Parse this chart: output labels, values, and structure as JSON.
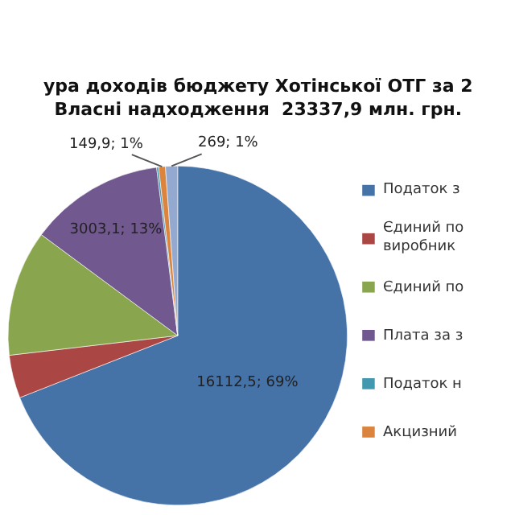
{
  "chart_data": {
    "type": "pie",
    "title": "ура доходів бюджету Хотінської ОТГ за 2",
    "subtitle": "Власні надходження  23337,9 млн. грн.",
    "categories": [
      "Податок з",
      "Єдиний по виробник",
      "Єдиний по",
      "Плата за з",
      "Податок н",
      "Акцизний",
      null
    ],
    "values": [
      16112.5,
      958.4,
      2800,
      3003.1,
      45,
      149.9,
      269
    ],
    "colors": [
      "#4572a7",
      "#aa4643",
      "#89a54e",
      "#71588f",
      "#4198af",
      "#db843d",
      "#93a9cf"
    ],
    "value_labels": [
      "16112,5; 69%",
      null,
      null,
      "3003,1; 13%",
      null,
      "149,9; 1%",
      "269; 1%"
    ],
    "legend": "right"
  }
}
